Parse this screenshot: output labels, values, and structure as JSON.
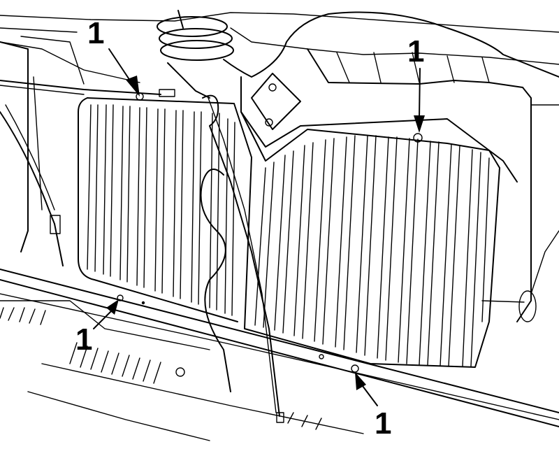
{
  "figure": {
    "callouts": [
      {
        "label": "1"
      },
      {
        "label": "1"
      },
      {
        "label": "1"
      },
      {
        "label": "1"
      }
    ]
  }
}
